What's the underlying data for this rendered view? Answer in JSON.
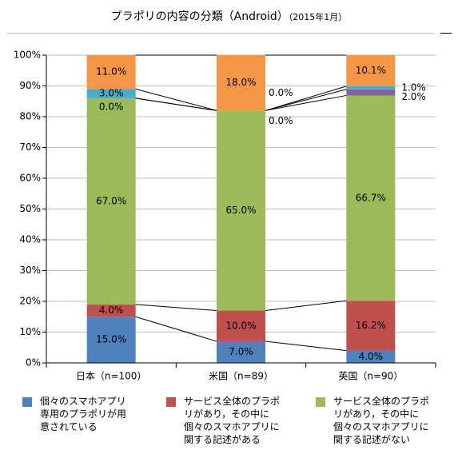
{
  "header": {
    "title": "プラポリの内容の分類（Android）",
    "subtitle": "（2015年1月）"
  },
  "colors": {
    "individual_app_policy": "#4f81bd",
    "service_policy_with_mention": "#c0504d",
    "service_policy_without_mention": "#9bbb59",
    "purple_segment": "#8064a2",
    "teal_segment": "#4bacc6",
    "orange_segment": "#f79646"
  },
  "chart_data": {
    "type": "bar",
    "stacked": true,
    "percent": true,
    "categories": [
      "日本（n=100）",
      "米国（n=89）",
      "英国（n=90）"
    ],
    "ylim": [
      0,
      100
    ],
    "y_ticks": [
      "0%",
      "10%",
      "20%",
      "30%",
      "40%",
      "50%",
      "60%",
      "70%",
      "80%",
      "90%",
      "100%"
    ],
    "grid": true,
    "legend_position": "bottom",
    "series": [
      {
        "name": "個々のスマホアプリ専用のプラポリが用意されている",
        "color_key": "individual_app_policy",
        "values": [
          15.0,
          7.0,
          4.0
        ],
        "labels": [
          "15.0%",
          "7.0%",
          "4.0%"
        ]
      },
      {
        "name": "サービス全体のプラポリがあり，その中に個々のスマホアプリに関する記述がある",
        "color_key": "service_policy_with_mention",
        "values": [
          4.0,
          10.0,
          16.2
        ],
        "labels": [
          "4.0%",
          "10.0%",
          "16.2%"
        ]
      },
      {
        "name": "サービス全体のプラポリがあり，その中に個々のスマホアプリに関する記述がない",
        "color_key": "service_policy_without_mention",
        "values": [
          67.0,
          65.0,
          66.7
        ],
        "labels": [
          "67.0%",
          "65.0%",
          "66.7%"
        ]
      },
      {
        "color_key": "purple_segment",
        "values": [
          0.0,
          0.0,
          2.0
        ],
        "labels": [
          "0.0%",
          "0.0%",
          "2.0%"
        ]
      },
      {
        "color_key": "teal_segment",
        "values": [
          3.0,
          0.0,
          1.0
        ],
        "labels": [
          "3.0%",
          "0.0%",
          "1.0%"
        ]
      },
      {
        "color_key": "orange_segment",
        "values": [
          11.0,
          18.0,
          10.1
        ],
        "labels": [
          "11.0%",
          "18.0%",
          "10.1%"
        ]
      }
    ]
  },
  "legend": [
    {
      "label": "個々のスマホアプリ\n専用のプラポリが用\n意されている",
      "color_key": "individual_app_policy"
    },
    {
      "label": "サービス全体のプラポ\nリがあり，その中に\n個々のスマホアプリに\n関する記述がある",
      "color_key": "service_policy_with_mention"
    },
    {
      "label": "サービス全体のプラポ\nリがあり，その中に\n個々のスマホアプリに\n関する記述がない",
      "color_key": "service_policy_without_mention"
    }
  ]
}
